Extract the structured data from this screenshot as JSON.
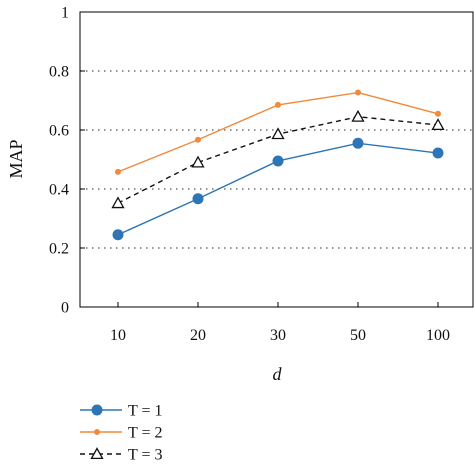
{
  "chart_data": {
    "type": "line",
    "title": "",
    "xlabel": "d",
    "ylabel": "MAP",
    "categories": [
      "10",
      "20",
      "30",
      "50",
      "100"
    ],
    "y_ticks": [
      "0",
      "0.2",
      "0.4",
      "0.6",
      "0.8",
      "1"
    ],
    "ylim": [
      0,
      1
    ],
    "grid": "horizontal dotted",
    "legend_position": "bottom-left",
    "series": [
      {
        "name": "T = 1",
        "values": [
          0.245,
          0.367,
          0.495,
          0.555,
          0.522
        ],
        "color": "#2e75b6",
        "marker": "filled-circle",
        "line": "solid"
      },
      {
        "name": "T = 2",
        "values": [
          0.458,
          0.567,
          0.685,
          0.727,
          0.655
        ],
        "color": "#f08a3c",
        "marker": "small-dot",
        "line": "solid"
      },
      {
        "name": "T = 3",
        "values": [
          0.352,
          0.49,
          0.586,
          0.645,
          0.617
        ],
        "color": "#111111",
        "marker": "hollow-triangle",
        "line": "dashed"
      }
    ]
  }
}
